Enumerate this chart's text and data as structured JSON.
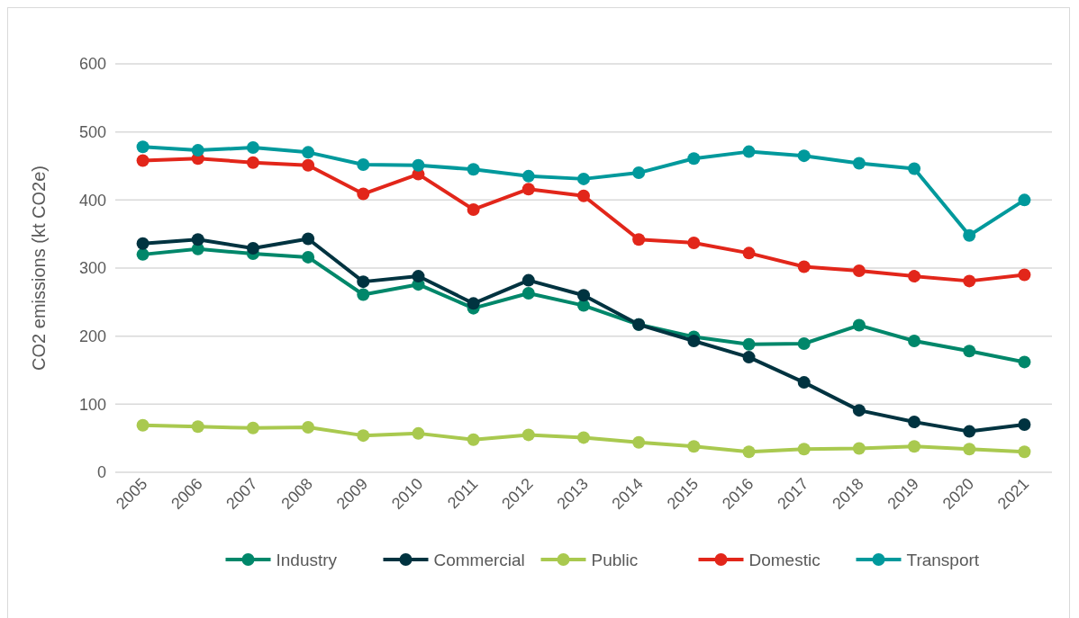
{
  "chart_data": {
    "type": "line",
    "ylabel": "CO2 emissions (kt CO2e)",
    "categories": [
      "2005",
      "2006",
      "2007",
      "2008",
      "2009",
      "2010",
      "2011",
      "2012",
      "2013",
      "2014",
      "2015",
      "2016",
      "2017",
      "2018",
      "2019",
      "2020",
      "2021"
    ],
    "series": [
      {
        "name": "Industry",
        "color": "#00876a",
        "values": [
          320,
          328,
          321,
          316,
          261,
          276,
          241,
          263,
          245,
          217,
          199,
          188,
          189,
          216,
          193,
          178,
          162
        ]
      },
      {
        "name": "Commercial",
        "color": "#003340",
        "values": [
          336,
          342,
          329,
          343,
          280,
          288,
          248,
          282,
          260,
          217,
          193,
          169,
          132,
          91,
          74,
          60,
          70
        ]
      },
      {
        "name": "Public",
        "color": "#a9c94f",
        "values": [
          69,
          67,
          65,
          66,
          54,
          57,
          48,
          55,
          51,
          44,
          38,
          30,
          34,
          35,
          38,
          34,
          30
        ]
      },
      {
        "name": "Domestic",
        "color": "#e2261a",
        "values": [
          458,
          461,
          455,
          451,
          409,
          438,
          386,
          416,
          406,
          342,
          337,
          322,
          302,
          296,
          288,
          281,
          290
        ]
      },
      {
        "name": "Transport",
        "color": "#00999c",
        "values": [
          478,
          473,
          477,
          470,
          452,
          451,
          445,
          435,
          431,
          440,
          461,
          471,
          465,
          454,
          446,
          348,
          400
        ]
      }
    ],
    "ylim": [
      0,
      600
    ],
    "yticks": [
      0,
      100,
      200,
      300,
      400,
      500,
      600
    ],
    "grid": "y",
    "legend": "bottom",
    "marker": "circle",
    "line_style": "solid"
  }
}
